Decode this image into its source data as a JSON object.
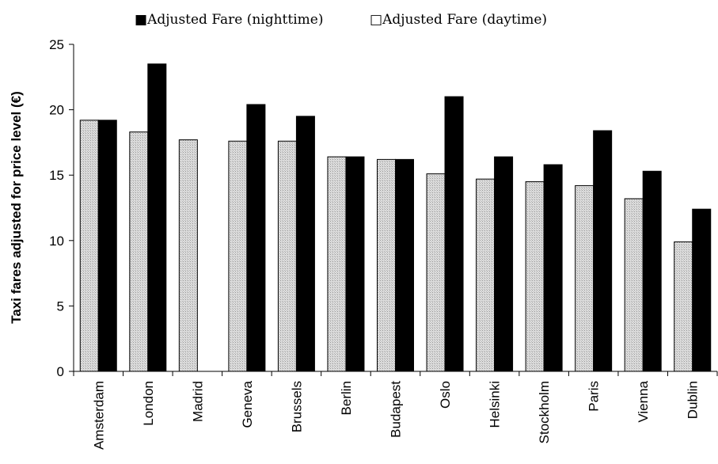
{
  "chart_data": {
    "type": "bar",
    "categories": [
      "Amsterdam",
      "London",
      "Madrid",
      "Geneva",
      "Brussels",
      "Berlin",
      "Budapest",
      "Oslo",
      "Helsinki",
      "Stockholm",
      "Paris",
      "Vienna",
      "Dublin"
    ],
    "series": [
      {
        "name": "Adjusted Fare (daytime)",
        "color": "#d2d2d2",
        "values": [
          19.2,
          18.3,
          17.7,
          17.6,
          17.6,
          16.4,
          16.2,
          15.1,
          14.7,
          14.5,
          14.2,
          13.2,
          9.9
        ]
      },
      {
        "name": "Adjusted Fare (nighttime)",
        "color": "#000000",
        "values": [
          19.2,
          23.5,
          null,
          20.4,
          19.5,
          16.4,
          16.2,
          21.0,
          16.4,
          15.8,
          18.4,
          15.3,
          12.4
        ]
      }
    ],
    "legend": [
      {
        "symbol": "■",
        "label": "Adjusted Fare (nighttime)"
      },
      {
        "symbol": "□",
        "label": "Adjusted Fare (daytime)"
      }
    ],
    "legend_position": "top",
    "title": "",
    "xlabel": "",
    "ylabel": "Taxi fares adjusted for price level (€)",
    "ylim": [
      0,
      25
    ],
    "yticks": [
      0,
      5,
      10,
      15,
      20,
      25
    ],
    "grid": false
  }
}
